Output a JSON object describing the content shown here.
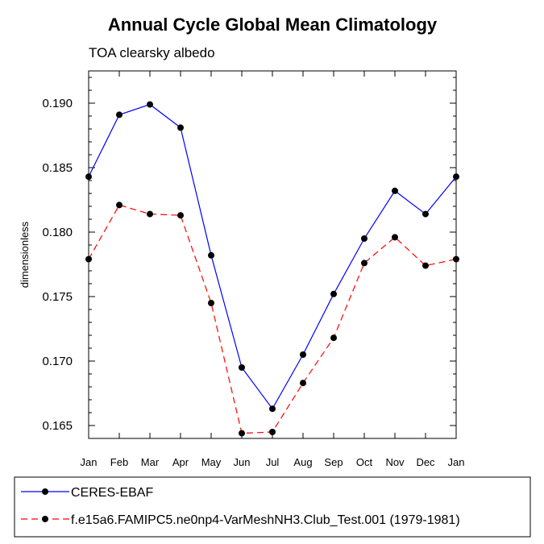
{
  "chart_data": {
    "type": "line",
    "title": "Annual Cycle Global Mean Climatology",
    "subtitle": "TOA clearsky albedo",
    "xlabel": "",
    "ylabel": "dimensionless",
    "categories": [
      "Jan",
      "Feb",
      "Mar",
      "Apr",
      "May",
      "Jun",
      "Jul",
      "Aug",
      "Sep",
      "Oct",
      "Nov",
      "Dec",
      "Jan"
    ],
    "ylim": [
      0.164,
      0.1925
    ],
    "yticks": [
      "0.165",
      "0.170",
      "0.175",
      "0.180",
      "0.185",
      "0.190"
    ],
    "legend_position": "bottom",
    "grid": false,
    "series": [
      {
        "name": "CERES-EBAF",
        "color": "#0000ff",
        "line_style": "solid",
        "marker": "filled-circle",
        "values": [
          0.1843,
          0.1891,
          0.1899,
          0.1881,
          0.1782,
          0.1695,
          0.1663,
          0.1705,
          0.1752,
          0.1795,
          0.1832,
          0.1814,
          0.1843
        ]
      },
      {
        "name": "f.e15a6.FAMIPC5.ne0np4-VarMeshNH3.Club_Test.001 (1979-1981)",
        "color": "#ff0000",
        "line_style": "dashed",
        "marker": "filled-circle",
        "values": [
          0.1779,
          0.1821,
          0.1814,
          0.1813,
          0.1745,
          0.1644,
          0.1645,
          0.1683,
          0.1718,
          0.1776,
          0.1796,
          0.1774,
          0.1779
        ]
      }
    ]
  }
}
